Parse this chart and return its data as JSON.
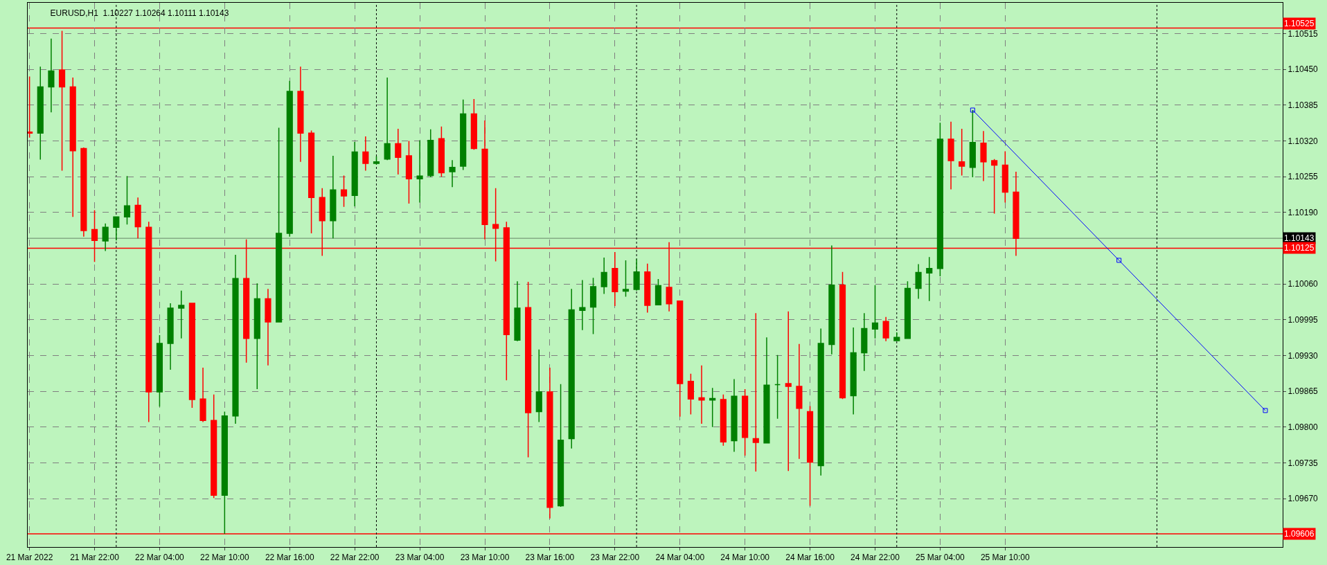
{
  "chart_data": {
    "type": "candlestick",
    "title": "EURUSD,H1  1.10227 1.10264 1.10111 1.10143",
    "xlim": [
      "2022-03-21T15:50",
      "2022-03-26T11:36"
    ],
    "xticks": [
      {
        "value": "2022-03-21T16:00",
        "label": "21 Mar 2022"
      },
      {
        "value": "2022-03-21T22:00",
        "label": "21 Mar 22:00"
      },
      {
        "value": "2022-03-22T04:00",
        "label": "22 Mar 04:00"
      },
      {
        "value": "2022-03-22T10:00",
        "label": "22 Mar 10:00"
      },
      {
        "value": "2022-03-22T16:00",
        "label": "22 Mar 16:00"
      },
      {
        "value": "2022-03-22T22:00",
        "label": "22 Mar 22:00"
      },
      {
        "value": "2022-03-23T04:00",
        "label": "23 Mar 04:00"
      },
      {
        "value": "2022-03-23T10:00",
        "label": "23 Mar 10:00"
      },
      {
        "value": "2022-03-23T16:00",
        "label": "23 Mar 16:00"
      },
      {
        "value": "2022-03-23T22:00",
        "label": "23 Mar 22:00"
      },
      {
        "value": "2022-03-24T04:00",
        "label": "24 Mar 04:00"
      },
      {
        "value": "2022-03-24T10:00",
        "label": "24 Mar 10:00"
      },
      {
        "value": "2022-03-24T16:00",
        "label": "24 Mar 16:00"
      },
      {
        "value": "2022-03-24T22:00",
        "label": "24 Mar 22:00"
      },
      {
        "value": "2022-03-25T04:00",
        "label": "25 Mar 04:00"
      },
      {
        "value": "2022-03-25T10:00",
        "label": "25 Mar 10:00"
      }
    ],
    "ylim": [
      1.09582,
      1.10571
    ],
    "yticks": [
      1.10515,
      {
        "value": 1.1045,
        "label": "1.10450"
      },
      1.10385,
      {
        "value": 1.1032,
        "label": "1.10320"
      },
      1.10255,
      {
        "value": 1.1019,
        "label": "1.10190"
      },
      {
        "value": 1.1006,
        "label": "1.10060"
      },
      1.09995,
      {
        "value": 1.0993,
        "label": "1.09930"
      },
      1.09865,
      {
        "value": 1.098,
        "label": "1.09800"
      },
      1.09735,
      {
        "value": 1.0967,
        "label": "1.09670"
      }
    ],
    "grid": true,
    "series": [
      {
        "x": [
          "2022-03-21T16:00",
          "2022-03-21T17:00",
          "2022-03-21T18:00",
          "2022-03-21T19:00",
          "2022-03-21T20:00",
          "2022-03-21T21:00",
          "2022-03-21T22:00",
          "2022-03-21T23:00",
          "2022-03-22T00:00",
          "2022-03-22T01:00",
          "2022-03-22T02:00",
          "2022-03-22T03:00",
          "2022-03-22T04:00",
          "2022-03-22T05:00",
          "2022-03-22T06:00",
          "2022-03-22T07:00",
          "2022-03-22T08:00",
          "2022-03-22T09:00",
          "2022-03-22T10:00",
          "2022-03-22T11:00",
          "2022-03-22T12:00",
          "2022-03-22T13:00",
          "2022-03-22T14:00",
          "2022-03-22T15:00",
          "2022-03-22T16:00",
          "2022-03-22T17:00",
          "2022-03-22T18:00",
          "2022-03-22T19:00",
          "2022-03-22T20:00",
          "2022-03-22T21:00",
          "2022-03-22T22:00",
          "2022-03-22T23:00",
          "2022-03-23T00:00",
          "2022-03-23T01:00",
          "2022-03-23T02:00",
          "2022-03-23T03:00",
          "2022-03-23T04:00",
          "2022-03-23T05:00",
          "2022-03-23T06:00",
          "2022-03-23T07:00",
          "2022-03-23T08:00",
          "2022-03-23T09:00",
          "2022-03-23T10:00",
          "2022-03-23T11:00",
          "2022-03-23T12:00",
          "2022-03-23T13:00",
          "2022-03-23T14:00",
          "2022-03-23T15:00",
          "2022-03-23T16:00",
          "2022-03-23T17:00",
          "2022-03-23T18:00",
          "2022-03-23T19:00",
          "2022-03-23T20:00",
          "2022-03-23T21:00",
          "2022-03-23T22:00",
          "2022-03-23T23:00",
          "2022-03-24T00:00",
          "2022-03-24T01:00",
          "2022-03-24T02:00",
          "2022-03-24T03:00",
          "2022-03-24T04:00",
          "2022-03-24T05:00",
          "2022-03-24T06:00",
          "2022-03-24T07:00",
          "2022-03-24T08:00",
          "2022-03-24T09:00",
          "2022-03-24T10:00",
          "2022-03-24T11:00",
          "2022-03-24T12:00",
          "2022-03-24T13:00",
          "2022-03-24T14:00",
          "2022-03-24T15:00",
          "2022-03-24T16:00",
          "2022-03-24T17:00",
          "2022-03-24T18:00",
          "2022-03-24T19:00",
          "2022-03-24T20:00",
          "2022-03-24T21:00",
          "2022-03-24T22:00",
          "2022-03-24T23:00",
          "2022-03-25T00:00",
          "2022-03-25T01:00",
          "2022-03-25T02:00",
          "2022-03-25T03:00",
          "2022-03-25T04:00",
          "2022-03-25T05:00",
          "2022-03-25T06:00",
          "2022-03-25T07:00",
          "2022-03-25T08:00",
          "2022-03-25T09:00",
          "2022-03-25T10:00",
          "2022-03-25T11:00"
        ],
        "ohlc": [
          [
            1.10336,
            1.10437,
            1.10326,
            1.10334
          ],
          [
            1.10334,
            1.10455,
            1.10286,
            1.10418
          ],
          [
            1.10418,
            1.10506,
            1.10372,
            1.10447
          ],
          [
            1.10449,
            1.1052,
            1.10266,
            1.10418
          ],
          [
            1.10418,
            1.10435,
            1.10182,
            1.10302
          ],
          [
            1.10306,
            1.10308,
            1.10146,
            1.10157
          ],
          [
            1.10159,
            1.10194,
            1.101,
            1.10139
          ],
          [
            1.10138,
            1.1017,
            1.1012,
            1.10163
          ],
          [
            1.10163,
            1.10182,
            1.10139,
            1.10182
          ],
          [
            1.10182,
            1.10256,
            1.10168,
            1.10202
          ],
          [
            1.10203,
            1.10217,
            1.10143,
            1.10164
          ],
          [
            1.10163,
            1.10173,
            1.09809,
            1.09864
          ],
          [
            1.09864,
            1.09967,
            1.09837,
            1.09952
          ],
          [
            1.09952,
            1.10025,
            1.09904,
            1.10016
          ],
          [
            1.10016,
            1.10048,
            1.09961,
            1.10021
          ],
          [
            1.10025,
            1.10025,
            1.09835,
            1.0985
          ],
          [
            1.09851,
            1.09908,
            1.09809,
            1.09812
          ],
          [
            1.09812,
            1.09859,
            1.09671,
            1.09676
          ],
          [
            1.09676,
            1.09828,
            1.09606,
            1.0982
          ],
          [
            1.0982,
            1.10113,
            1.09806,
            1.1007
          ],
          [
            1.1007,
            1.10141,
            1.09917,
            1.09961
          ],
          [
            1.09961,
            1.10061,
            1.09869,
            1.10033
          ],
          [
            1.10033,
            1.10051,
            1.09912,
            1.09991
          ],
          [
            1.09991,
            1.10344,
            1.09991,
            1.10152
          ],
          [
            1.10152,
            1.10429,
            1.10146,
            1.1041
          ],
          [
            1.1041,
            1.10455,
            1.10282,
            1.10334
          ],
          [
            1.10334,
            1.10339,
            1.10152,
            1.10217
          ],
          [
            1.10217,
            1.10234,
            1.10111,
            1.10175
          ],
          [
            1.10175,
            1.10293,
            1.10143,
            1.10231
          ],
          [
            1.10231,
            1.10257,
            1.102,
            1.1022
          ],
          [
            1.10221,
            1.10318,
            1.10201,
            1.103
          ],
          [
            1.103,
            1.10328,
            1.10266,
            1.10279
          ],
          [
            1.10279,
            1.10292,
            1.10277,
            1.10282
          ],
          [
            1.10287,
            1.10435,
            1.10285,
            1.10315
          ],
          [
            1.10315,
            1.10342,
            1.10259,
            1.1029
          ],
          [
            1.10293,
            1.1032,
            1.10206,
            1.10251
          ],
          [
            1.10251,
            1.10321,
            1.10208,
            1.10256
          ],
          [
            1.10257,
            1.10341,
            1.10254,
            1.10321
          ],
          [
            1.10324,
            1.10346,
            1.10255,
            1.10262
          ],
          [
            1.10264,
            1.10285,
            1.10236,
            1.10272
          ],
          [
            1.10274,
            1.10395,
            1.10267,
            1.10369
          ],
          [
            1.10369,
            1.10396,
            1.10304,
            1.10306
          ],
          [
            1.10305,
            1.10357,
            1.10141,
            1.10168
          ],
          [
            1.10168,
            1.10234,
            1.10101,
            1.10161
          ],
          [
            1.10162,
            1.10173,
            1.09885,
            1.09968
          ],
          [
            1.09958,
            1.10065,
            1.09956,
            1.10016
          ],
          [
            1.10017,
            1.10064,
            1.09745,
            1.09826
          ],
          [
            1.09828,
            1.09941,
            1.09809,
            1.09864
          ],
          [
            1.09864,
            1.09908,
            1.09634,
            1.09654
          ],
          [
            1.09657,
            1.09878,
            1.09655,
            1.09776
          ],
          [
            1.09779,
            1.10051,
            1.09761,
            1.10013
          ],
          [
            1.10012,
            1.10067,
            1.09976,
            1.10017
          ],
          [
            1.10018,
            1.10071,
            1.09969,
            1.10055
          ],
          [
            1.10055,
            1.10108,
            1.10042,
            1.10081
          ],
          [
            1.10088,
            1.10118,
            1.1002,
            1.10046
          ],
          [
            1.10047,
            1.10103,
            1.10037,
            1.1005
          ],
          [
            1.1005,
            1.10105,
            1.10048,
            1.10082
          ],
          [
            1.10082,
            1.10097,
            1.10008,
            1.10021
          ],
          [
            1.10022,
            1.10069,
            1.10022,
            1.10057
          ],
          [
            1.10054,
            1.10136,
            1.1001,
            1.10024
          ],
          [
            1.10029,
            1.10029,
            1.09819,
            1.09879
          ],
          [
            1.09883,
            1.09897,
            1.09823,
            1.09851
          ],
          [
            1.09853,
            1.09912,
            1.09806,
            1.09849
          ],
          [
            1.09849,
            1.09871,
            1.098,
            1.09852
          ],
          [
            1.0985,
            1.09859,
            1.09766,
            1.09773
          ],
          [
            1.09775,
            1.09887,
            1.09755,
            1.09856
          ],
          [
            1.09856,
            1.09869,
            1.09748,
            1.09781
          ],
          [
            1.09779,
            1.10007,
            1.09719,
            1.09772
          ],
          [
            1.09771,
            1.09963,
            1.09771,
            1.09876
          ],
          [
            1.09877,
            1.09931,
            1.09815,
            1.09877
          ],
          [
            1.09879,
            1.1001,
            1.0972,
            1.09874
          ],
          [
            1.09874,
            1.09951,
            1.09742,
            1.09834
          ],
          [
            1.09828,
            1.09838,
            1.09657,
            1.09736
          ],
          [
            1.0973,
            1.09979,
            1.09712,
            1.09952
          ],
          [
            1.0995,
            1.1013,
            1.09932,
            1.10058
          ],
          [
            1.10058,
            1.10082,
            1.09851,
            1.09853
          ],
          [
            1.09857,
            1.09981,
            1.09823,
            1.09935
          ],
          [
            1.09935,
            1.10007,
            1.09902,
            1.09979
          ],
          [
            1.09978,
            1.10058,
            1.09961,
            1.09989
          ],
          [
            1.09992,
            1.1,
            1.09956,
            1.09962
          ],
          [
            1.09957,
            1.09972,
            1.09957,
            1.09963
          ],
          [
            1.09961,
            1.10065,
            1.09961,
            1.10052
          ],
          [
            1.10052,
            1.10096,
            1.10033,
            1.10081
          ],
          [
            1.1008,
            1.10109,
            1.10029,
            1.10088
          ],
          [
            1.10088,
            1.10353,
            1.10074,
            1.10323
          ],
          [
            1.10323,
            1.10355,
            1.10232,
            1.10284
          ],
          [
            1.10282,
            1.10342,
            1.10257,
            1.10274
          ],
          [
            1.10272,
            1.10376,
            1.10254,
            1.10317
          ],
          [
            1.10316,
            1.10338,
            1.10247,
            1.10282
          ],
          [
            1.10284,
            1.10287,
            1.10188,
            1.10276
          ],
          [
            1.10276,
            1.10301,
            1.10208,
            1.10227
          ],
          [
            1.10227,
            1.10264,
            1.10111,
            1.10143
          ]
        ],
        "colors": [
          "#ff0000",
          "#008000",
          "#008000",
          "#ff0000",
          "#ff0000",
          "#ff0000",
          "#ff0000",
          "#008000",
          "#008000",
          "#008000",
          "#ff0000",
          "#ff0000",
          "#008000",
          "#008000",
          "#008000",
          "#ff0000",
          "#ff0000",
          "#ff0000",
          "#008000",
          "#008000",
          "#ff0000",
          "#008000",
          "#ff0000",
          "#008000",
          "#008000",
          "#ff0000",
          "#ff0000",
          "#ff0000",
          "#008000",
          "#ff0000",
          "#008000",
          "#ff0000",
          "#008000",
          "#008000",
          "#ff0000",
          "#ff0000",
          "#008000",
          "#008000",
          "#ff0000",
          "#008000",
          "#008000",
          "#ff0000",
          "#ff0000",
          "#ff0000",
          "#ff0000",
          "#008000",
          "#ff0000",
          "#008000",
          "#ff0000",
          "#008000",
          "#008000",
          "#008000",
          "#008000",
          "#008000",
          "#ff0000",
          "#008000",
          "#008000",
          "#ff0000",
          "#008000",
          "#ff0000",
          "#ff0000",
          "#ff0000",
          "#ff0000",
          "#008000",
          "#ff0000",
          "#008000",
          "#ff0000",
          "#ff0000",
          "#008000",
          "#008000",
          "#ff0000",
          "#ff0000",
          "#ff0000",
          "#008000",
          "#008000",
          "#ff0000",
          "#008000",
          "#008000",
          "#008000",
          "#ff0000",
          "#008000",
          "#008000",
          "#008000",
          "#008000",
          "#008000",
          "#ff0000",
          "#ff0000",
          "#008000",
          "#ff0000",
          "#ff0000",
          "#ff0000",
          "#ff0000"
        ]
      },
      {
        "type": "line",
        "x": [
          "2022-03-25T07:00",
          "2022-03-25T20:30",
          "2022-03-26T10:00"
        ],
        "values": [
          1.10376,
          1.10103,
          1.0983
        ],
        "color": "#0000ff",
        "marker": "square"
      }
    ],
    "ref_lines": [
      {
        "axis": "y",
        "value": 1.10525,
        "label": "1.10525",
        "color": "#ff0000"
      },
      {
        "axis": "y",
        "value": 1.10143,
        "label": "1.10143",
        "color": "#000000"
      },
      {
        "axis": "y",
        "value": 1.10125,
        "label": "1.10125",
        "color": "#ff0000"
      },
      {
        "axis": "y",
        "value": 1.09606,
        "label": "1.09606",
        "color": "#ff0000"
      },
      {
        "axis": "x",
        "value": "2022-03-22T00:00",
        "color": "#000000",
        "line_style": "dotted"
      },
      {
        "axis": "x",
        "value": "2022-03-23T00:00",
        "color": "#000000",
        "line_style": "dotted"
      },
      {
        "axis": "x",
        "value": "2022-03-24T00:00",
        "color": "#000000",
        "line_style": "dotted"
      },
      {
        "axis": "x",
        "value": "2022-03-25T00:00",
        "color": "#000000",
        "line_style": "dotted"
      },
      {
        "axis": "x",
        "value": "2022-03-26T00:00",
        "color": "#000000",
        "line_style": "dotted"
      }
    ]
  }
}
